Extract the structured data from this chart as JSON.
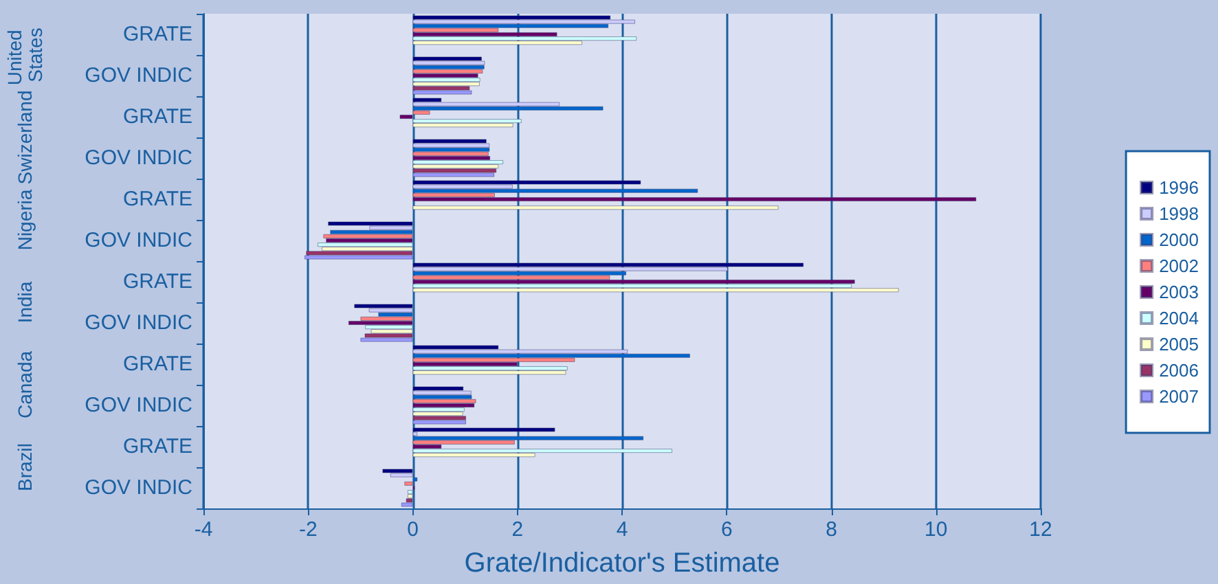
{
  "chart_data": {
    "type": "bar",
    "orientation": "horizontal",
    "xlabel": "Grate/Indicator's Estimate",
    "categories": [
      "GRATE",
      "GOV INDIC",
      "GRATE",
      "GOV INDIC",
      "GRATE",
      "GOV INDIC",
      "GRATE",
      "GOV INDIC",
      "GRATE",
      "GOV INDIC",
      "GRATE",
      "GOV INDIC"
    ],
    "annotations": [
      "United States",
      "Swizerland",
      "Nigeria",
      "India",
      "Canada",
      "Brazil"
    ],
    "series": [
      {
        "name": "1996",
        "color": "#000080",
        "values": [
          3.78,
          1.32,
          0.55,
          1.41,
          4.36,
          -1.62,
          7.47,
          -1.12,
          1.64,
          0.97,
          2.72,
          -0.58
        ]
      },
      {
        "name": "1998",
        "color": "#ccccff",
        "values": [
          4.25,
          1.38,
          2.81,
          1.47,
          1.91,
          -0.83,
          6.02,
          -0.84,
          4.11,
          1.12,
          0.09,
          -0.43
        ]
      },
      {
        "name": "2000",
        "color": "#0066cc",
        "values": [
          3.74,
          1.37,
          3.64,
          1.47,
          5.45,
          -1.58,
          4.08,
          -0.66,
          5.3,
          1.13,
          4.41,
          0.09
        ]
      },
      {
        "name": "2002",
        "color": "#ff8080",
        "values": [
          1.64,
          1.34,
          0.33,
          1.45,
          1.57,
          -1.71,
          3.77,
          -1.0,
          3.1,
          1.21,
          1.95,
          -0.16
        ]
      },
      {
        "name": "2003",
        "color": "#660066",
        "values": [
          2.76,
          1.25,
          -0.25,
          1.48,
          10.77,
          -1.66,
          8.45,
          -1.23,
          2.0,
          1.18,
          0.55,
          0.04
        ]
      },
      {
        "name": "2004",
        "color": "#ccffff",
        "values": [
          4.28,
          1.29,
          2.08,
          1.73,
          null,
          -1.82,
          8.39,
          -0.91,
          2.96,
          0.99,
          4.96,
          -0.1
        ]
      },
      {
        "name": "2005",
        "color": "#ffffcc",
        "values": [
          3.24,
          1.28,
          1.92,
          1.64,
          6.99,
          -1.74,
          9.29,
          -0.8,
          2.93,
          0.96,
          2.34,
          -0.1
        ]
      },
      {
        "name": "2006",
        "color": "#993366",
        "values": [
          null,
          1.09,
          null,
          1.6,
          null,
          -2.04,
          null,
          -0.92,
          null,
          1.02,
          null,
          -0.13
        ]
      },
      {
        "name": "2007",
        "color": "#9999ff",
        "values": [
          null,
          1.13,
          null,
          1.56,
          null,
          -2.07,
          null,
          -1.0,
          null,
          1.02,
          null,
          -0.22
        ]
      }
    ],
    "xlim": [
      -4,
      12
    ],
    "xticks": [
      -4,
      -2,
      0,
      2,
      4,
      6,
      8,
      10,
      12
    ],
    "grid": "x",
    "legend": "right"
  }
}
